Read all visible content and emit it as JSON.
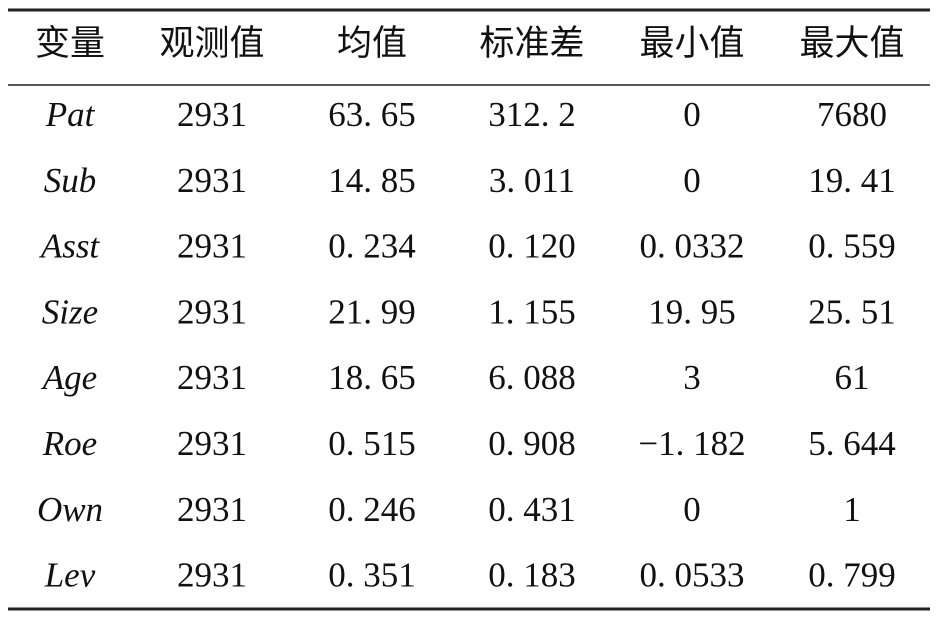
{
  "table": {
    "header": [
      "变量",
      "观测值",
      "均值",
      "标准差",
      "最小值",
      "最大值"
    ],
    "rows": [
      [
        "Pat",
        "2931",
        "63. 65",
        "312. 2",
        "0",
        "7680"
      ],
      [
        "Sub",
        "2931",
        "14. 85",
        "3. 011",
        "0",
        "19. 41"
      ],
      [
        "Asst",
        "2931",
        "0. 234",
        "0. 120",
        "0. 0332",
        "0. 559"
      ],
      [
        "Size",
        "2931",
        "21. 99",
        "1. 155",
        "19. 95",
        "25. 51"
      ],
      [
        "Age",
        "2931",
        "18. 65",
        "6. 088",
        "3",
        "61"
      ],
      [
        "Roe",
        "2931",
        "0. 515",
        "0. 908",
        "−1. 182",
        "5. 644"
      ],
      [
        "Own",
        "2931",
        "0. 246",
        "0. 431",
        "0",
        "1"
      ],
      [
        "Lev",
        "2931",
        "0. 351",
        "0. 183",
        "0. 0533",
        "0. 799"
      ]
    ]
  }
}
